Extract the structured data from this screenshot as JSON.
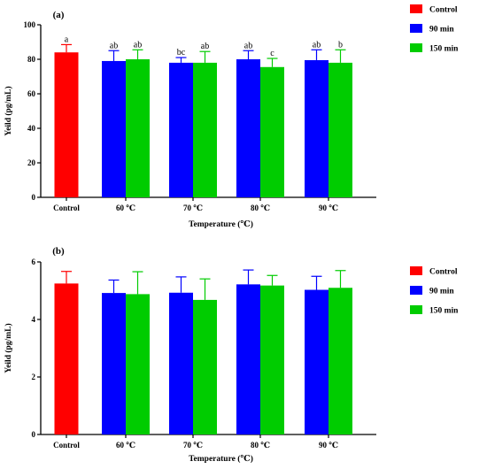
{
  "chart_data": [
    {
      "type": "bar",
      "panel_label": "(a)",
      "xlabel": "Temperature (℃)",
      "ylabel": "Yeild (pg/mL)",
      "ylim": [
        0,
        100
      ],
      "yticks": [
        0,
        20,
        40,
        60,
        80,
        100
      ],
      "groups": [
        {
          "label": "Control",
          "bars": [
            {
              "series": "Control",
              "value": 84,
              "error": 4.5,
              "sig": "a"
            }
          ]
        },
        {
          "label": "60 ℃",
          "bars": [
            {
              "series": "90 min",
              "value": 79,
              "error": 6,
              "sig": "ab"
            },
            {
              "series": "150 min",
              "value": 80,
              "error": 5.5,
              "sig": "ab"
            }
          ]
        },
        {
          "label": "70 ℃",
          "bars": [
            {
              "series": "90 min",
              "value": 78,
              "error": 3,
              "sig": "bc"
            },
            {
              "series": "150 min",
              "value": 78,
              "error": 6.5,
              "sig": "ab"
            }
          ]
        },
        {
          "label": "80 ℃",
          "bars": [
            {
              "series": "90 min",
              "value": 80,
              "error": 5,
              "sig": "ab"
            },
            {
              "series": "150 min",
              "value": 75.5,
              "error": 5,
              "sig": "c"
            }
          ]
        },
        {
          "label": "90 ℃",
          "bars": [
            {
              "series": "90 min",
              "value": 79.5,
              "error": 6,
              "sig": "ab"
            },
            {
              "series": "150 min",
              "value": 78,
              "error": 7.5,
              "sig": "b"
            }
          ]
        }
      ],
      "legend": {
        "placement": "right",
        "entries": [
          {
            "name": "Control",
            "color": "#ff0000"
          },
          {
            "name": "90 min",
            "color": "#0000ff"
          },
          {
            "name": "150 min",
            "color": "#00cc00"
          }
        ]
      },
      "grid": false
    },
    {
      "type": "bar",
      "panel_label": "(b)",
      "xlabel": "Temperature (℃)",
      "ylabel": "Yeild (pg/mL)",
      "ylim": [
        0,
        6
      ],
      "yticks": [
        0,
        2,
        4,
        6
      ],
      "groups": [
        {
          "label": "Control",
          "bars": [
            {
              "series": "Control",
              "value": 5.25,
              "error": 0.42
            }
          ]
        },
        {
          "label": "60 ℃",
          "bars": [
            {
              "series": "90 min",
              "value": 4.92,
              "error": 0.45
            },
            {
              "series": "150 min",
              "value": 4.88,
              "error": 0.78
            }
          ]
        },
        {
          "label": "70 ℃",
          "bars": [
            {
              "series": "90 min",
              "value": 4.93,
              "error": 0.55
            },
            {
              "series": "150 min",
              "value": 4.68,
              "error": 0.73
            }
          ]
        },
        {
          "label": "80 ℃",
          "bars": [
            {
              "series": "90 min",
              "value": 5.22,
              "error": 0.5
            },
            {
              "series": "150 min",
              "value": 5.18,
              "error": 0.35
            }
          ]
        },
        {
          "label": "90 ℃",
          "bars": [
            {
              "series": "90 min",
              "value": 5.03,
              "error": 0.47
            },
            {
              "series": "150 min",
              "value": 5.1,
              "error": 0.6
            }
          ]
        }
      ],
      "legend": {
        "placement": "right",
        "entries": [
          {
            "name": "Control",
            "color": "#ff0000"
          },
          {
            "name": "90 min",
            "color": "#0000ff"
          },
          {
            "name": "150 min",
            "color": "#00cc00"
          }
        ]
      },
      "grid": false
    }
  ],
  "colors": {
    "Control": "#ff0000",
    "90 min": "#0000ff",
    "150 min": "#00cc00"
  }
}
